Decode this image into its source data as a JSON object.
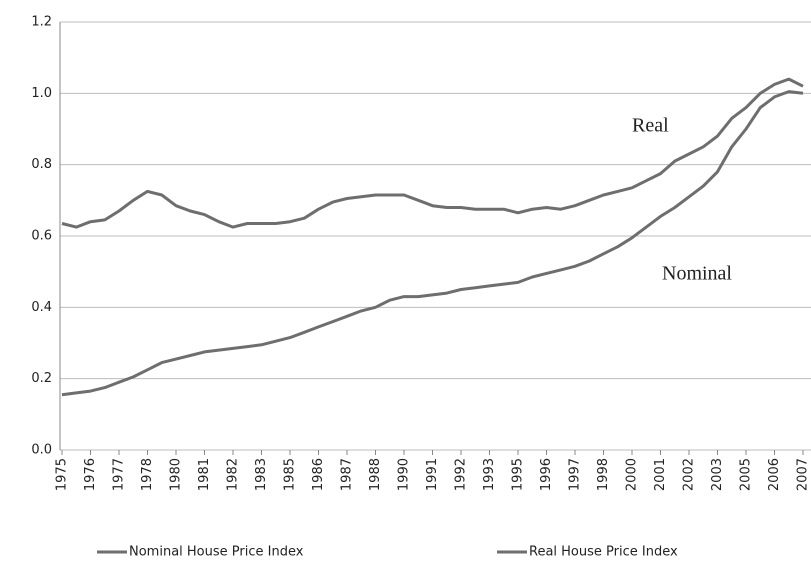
{
  "chart_data": {
    "type": "line",
    "categories": [
      "1975",
      null,
      "1976",
      null,
      "1977",
      null,
      "1978",
      null,
      "1980",
      null,
      "1981",
      null,
      "1982",
      null,
      "1983",
      null,
      "1985",
      null,
      "1986",
      null,
      "1987",
      null,
      "1988",
      null,
      "1990",
      null,
      "1991",
      null,
      "1992",
      null,
      "1993",
      null,
      "1995",
      null,
      "1996",
      null,
      "1997",
      null,
      "1998",
      null,
      "2000",
      null,
      "2001",
      null,
      "2002",
      null,
      "2003",
      null,
      "2005",
      null,
      "2006",
      null,
      "2007"
    ],
    "series": [
      {
        "name": "Nominal House Price Index",
        "color": "#6e6e6e",
        "values": [
          0.155,
          0.16,
          0.165,
          0.175,
          0.19,
          0.205,
          0.225,
          0.245,
          0.255,
          0.265,
          0.275,
          0.28,
          0.285,
          0.29,
          0.295,
          0.305,
          0.315,
          0.33,
          0.345,
          0.36,
          0.375,
          0.39,
          0.4,
          0.42,
          0.43,
          0.43,
          0.435,
          0.44,
          0.45,
          0.455,
          0.46,
          0.465,
          0.47,
          0.485,
          0.495,
          0.505,
          0.515,
          0.53,
          0.55,
          0.57,
          0.595,
          0.625,
          0.655,
          0.68,
          0.71,
          0.74,
          0.78,
          0.85,
          0.9,
          0.96,
          0.99,
          1.005,
          1.0
        ]
      },
      {
        "name": "Real House Price Index",
        "color": "#6e6e6e",
        "values": [
          0.635,
          0.625,
          0.64,
          0.645,
          0.67,
          0.7,
          0.725,
          0.715,
          0.685,
          0.67,
          0.66,
          0.64,
          0.625,
          0.635,
          0.635,
          0.635,
          0.64,
          0.65,
          0.675,
          0.695,
          0.705,
          0.71,
          0.715,
          0.715,
          0.715,
          0.7,
          0.685,
          0.68,
          0.68,
          0.675,
          0.675,
          0.675,
          0.665,
          0.675,
          0.68,
          0.675,
          0.685,
          0.7,
          0.715,
          0.725,
          0.735,
          0.755,
          0.775,
          0.81,
          0.83,
          0.85,
          0.88,
          0.93,
          0.96,
          1.0,
          1.025,
          1.04,
          1.02
        ]
      }
    ],
    "annotations": [
      "Real",
      "Nominal"
    ],
    "ylim": [
      0,
      1.2
    ],
    "yticks": [
      {
        "value": 0,
        "label": "0.0"
      },
      0.2,
      0.4,
      0.6,
      0.8,
      {
        "value": 1,
        "label": "1.0"
      },
      1.2
    ],
    "grid": true,
    "legend": "bottom"
  }
}
